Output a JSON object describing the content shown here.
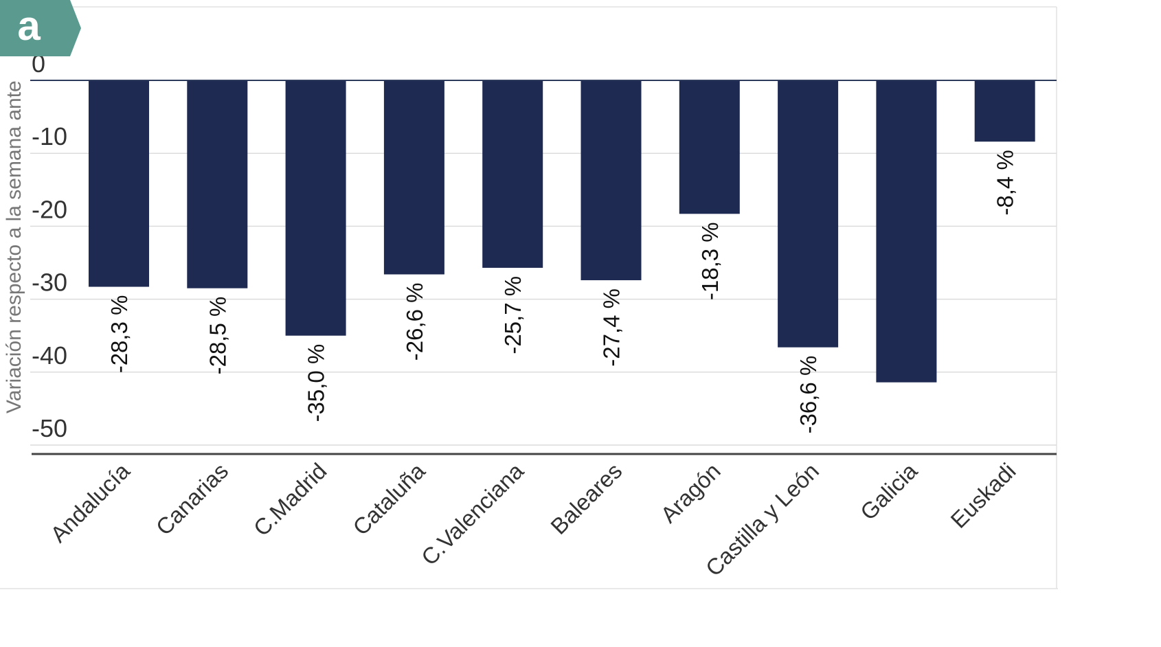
{
  "brand": {
    "logo_glyph": "a",
    "logo_color": "#5a9a8f",
    "logo_icon": "lock-a-icon"
  },
  "chart_data": {
    "type": "bar",
    "title": "",
    "xlabel": "",
    "ylabel": "Variación respecto a la semana ante",
    "ylim": [
      -52,
      8
    ],
    "yticks": [
      0,
      -10,
      -20,
      -30,
      -40,
      -50
    ],
    "ytick_labels": [
      "0",
      "-10",
      "-20",
      "-30",
      "-40",
      "-50"
    ],
    "grid": true,
    "categories": [
      "Andalucía",
      "Canarias",
      "C.Madrid",
      "Cataluña",
      "C.Valenciana",
      "Baleares",
      "Aragón",
      "Castilla y León",
      "Galicia",
      "Euskadi"
    ],
    "values": [
      -28.3,
      -28.5,
      -35.0,
      -26.6,
      -25.7,
      -27.4,
      -18.3,
      -36.6,
      -41.4,
      -8.4
    ],
    "data_labels": [
      "-28,3 %",
      "-28,5 %",
      "-35,0 %",
      "-26,6 %",
      "-25,7 %",
      "-27,4 %",
      "-18,3 %",
      "-36,6 %",
      "",
      "-8,4 %"
    ],
    "bar_color": "#1f2a52",
    "axis_color": "#2e3a5c"
  }
}
